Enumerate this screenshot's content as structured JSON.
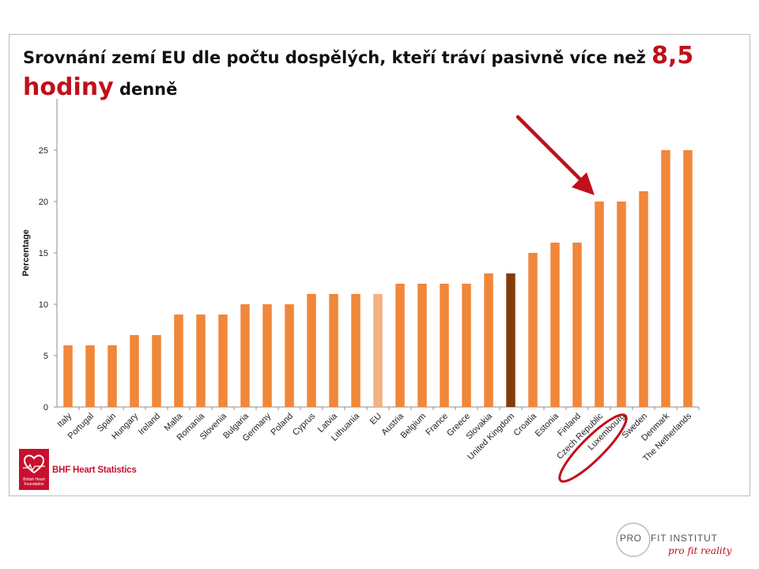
{
  "title": {
    "part1": "Srovnání zemí EU dle počtu dospělých, kteří tráví pasivně více než ",
    "highlight1": "8,5",
    "highlight2": "hodiny",
    "part2": " denně"
  },
  "source_label": "BHF Heart Statistics",
  "logo": {
    "bhf_lines": [
      "British Heart",
      "Foundation"
    ],
    "pfi_pro": "PRO",
    "pfi_fit": "FIT INSTITUT",
    "pfi_slogan": "pro fit reality"
  },
  "colors": {
    "bar": "#f0873a",
    "eu_bar": "#f4b183",
    "uk_bar": "#843c0c",
    "annotation": "#c0101a",
    "bhf_red": "#c8102e"
  },
  "chart_data": {
    "type": "bar",
    "ylabel": "Percentage",
    "ylim": [
      0,
      30
    ],
    "yticks": [
      0,
      5,
      10,
      15,
      20,
      25
    ],
    "grid": false,
    "categories": [
      "Italy",
      "Portugal",
      "Spain",
      "Hungary",
      "Ireland",
      "Malta",
      "Romania",
      "Slovenia",
      "Bulgaria",
      "Germany",
      "Poland",
      "Cyprus",
      "Latvia",
      "Lithuania",
      "EU",
      "Austria",
      "Belgium",
      "France",
      "Greece",
      "Slovakia",
      "United Kingdom",
      "Croatia",
      "Estonia",
      "Finland",
      "Czech Republic",
      "Luxembourg",
      "Sweden",
      "Denmark",
      "The Netherlands"
    ],
    "values": [
      6,
      6,
      6,
      7,
      7,
      9,
      9,
      9,
      10,
      10,
      10,
      11,
      11,
      11,
      11,
      12,
      12,
      12,
      12,
      13,
      13,
      15,
      16,
      16,
      20,
      20,
      21,
      25,
      25
    ],
    "highlighted": {
      "EU": "eu_bar",
      "United Kingdom": "uk_bar"
    },
    "annotation": {
      "type": "arrow-and-circle",
      "target": "Czech Republic"
    }
  }
}
